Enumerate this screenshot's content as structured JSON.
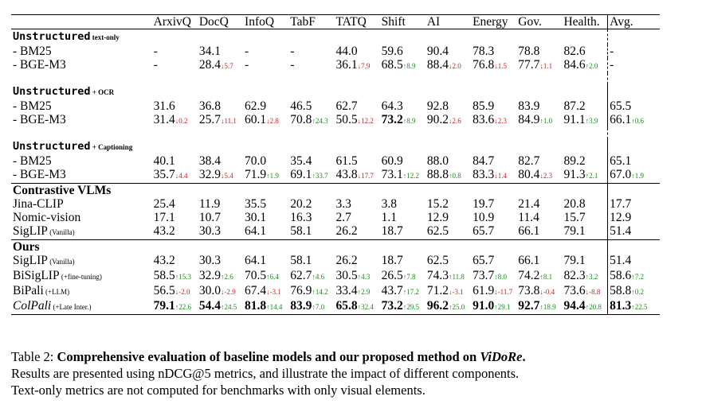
{
  "table": {
    "columns": [
      "ArxivQ",
      "DocQ",
      "InfoQ",
      "TabF",
      "TATQ",
      "Shift",
      "AI",
      "Energy",
      "Gov.",
      "Health.",
      "Avg."
    ],
    "groups": [
      {
        "title": "Unstructured",
        "subtitle": "text-only",
        "rows": [
          {
            "model": "- BM25",
            "tag": "",
            "cells": [
              {
                "v": "-"
              },
              {
                "v": "34.1"
              },
              {
                "v": "-"
              },
              {
                "v": "-"
              },
              {
                "v": "44.0"
              },
              {
                "v": "59.6"
              },
              {
                "v": "90.4"
              },
              {
                "v": "78.3"
              },
              {
                "v": "78.8"
              },
              {
                "v": "82.6"
              },
              {
                "v": "-"
              }
            ]
          },
          {
            "model": "- BGE-M3",
            "tag": "",
            "cells": [
              {
                "v": "-"
              },
              {
                "v": "28.4",
                "d": "↓5.7",
                "dir": "down"
              },
              {
                "v": "-"
              },
              {
                "v": "-"
              },
              {
                "v": "36.1",
                "d": "↓7.9",
                "dir": "down"
              },
              {
                "v": "68.5",
                "d": "↑8.9",
                "dir": "up"
              },
              {
                "v": "88.4",
                "d": "↓2.0",
                "dir": "down"
              },
              {
                "v": "76.8",
                "d": "↓1.5",
                "dir": "down"
              },
              {
                "v": "77.7",
                "d": "↓1.1",
                "dir": "down"
              },
              {
                "v": "84.6",
                "d": "↑2.0",
                "dir": "up"
              },
              {
                "v": "-"
              }
            ]
          }
        ]
      },
      {
        "title": "Unstructured",
        "subtitle": "+ OCR",
        "rows": [
          {
            "model": "- BM25",
            "tag": "",
            "cells": [
              {
                "v": "31.6"
              },
              {
                "v": "36.8"
              },
              {
                "v": "62.9"
              },
              {
                "v": "46.5"
              },
              {
                "v": "62.7"
              },
              {
                "v": "64.3"
              },
              {
                "v": "92.8"
              },
              {
                "v": "85.9"
              },
              {
                "v": "83.9"
              },
              {
                "v": "87.2"
              },
              {
                "v": "65.5"
              }
            ]
          },
          {
            "model": "- BGE-M3",
            "tag": "",
            "cells": [
              {
                "v": "31.4",
                "d": "↓0.2",
                "dir": "down"
              },
              {
                "v": "25.7",
                "d": "↓11.1",
                "dir": "down"
              },
              {
                "v": "60.1",
                "d": "↓2.8",
                "dir": "down"
              },
              {
                "v": "70.8",
                "d": "↑24.3",
                "dir": "up"
              },
              {
                "v": "50.5",
                "d": "↓12.2",
                "dir": "down"
              },
              {
                "v": "73.2",
                "d": "↑8.9",
                "dir": "up",
                "bold": true
              },
              {
                "v": "90.2",
                "d": "↓2.6",
                "dir": "down"
              },
              {
                "v": "83.6",
                "d": "↓2.3",
                "dir": "down"
              },
              {
                "v": "84.9",
                "d": "↑1.0",
                "dir": "up"
              },
              {
                "v": "91.1",
                "d": "↑3.9",
                "dir": "up"
              },
              {
                "v": "66.1",
                "d": "↑0.6",
                "dir": "up"
              }
            ]
          }
        ]
      },
      {
        "title": "Unstructured",
        "subtitle": "+ Captioning",
        "rows": [
          {
            "model": "- BM25",
            "tag": "",
            "cells": [
              {
                "v": "40.1"
              },
              {
                "v": "38.4"
              },
              {
                "v": "70.0"
              },
              {
                "v": "35.4"
              },
              {
                "v": "61.5"
              },
              {
                "v": "60.9"
              },
              {
                "v": "88.0"
              },
              {
                "v": "84.7"
              },
              {
                "v": "82.7"
              },
              {
                "v": "89.2"
              },
              {
                "v": "65.1"
              }
            ]
          },
          {
            "model": "- BGE-M3",
            "tag": "",
            "cells": [
              {
                "v": "35.7",
                "d": "↓4.4",
                "dir": "down"
              },
              {
                "v": "32.9",
                "d": "↓5.4",
                "dir": "down"
              },
              {
                "v": "71.9",
                "d": "↑1.9",
                "dir": "up"
              },
              {
                "v": "69.1",
                "d": "↑33.7",
                "dir": "up"
              },
              {
                "v": "43.8",
                "d": "↓17.7",
                "dir": "down"
              },
              {
                "v": "73.1",
                "d": "↑12.2",
                "dir": "up"
              },
              {
                "v": "88.8",
                "d": "↑0.8",
                "dir": "up"
              },
              {
                "v": "83.3",
                "d": "↓1.4",
                "dir": "down"
              },
              {
                "v": "80.4",
                "d": "↓2.3",
                "dir": "down"
              },
              {
                "v": "91.3",
                "d": "↑2.1",
                "dir": "up"
              },
              {
                "v": "67.0",
                "d": "↑1.9",
                "dir": "up"
              }
            ]
          }
        ]
      },
      {
        "title": "Contrastive VLMs",
        "subtitle": "",
        "rows": [
          {
            "model": "Jina-CLIP",
            "tag": "",
            "cells": [
              {
                "v": "25.4"
              },
              {
                "v": "11.9"
              },
              {
                "v": "35.5"
              },
              {
                "v": "20.2"
              },
              {
                "v": "3.3"
              },
              {
                "v": "3.8"
              },
              {
                "v": "15.2"
              },
              {
                "v": "19.7"
              },
              {
                "v": "21.4"
              },
              {
                "v": "20.8"
              },
              {
                "v": "17.7"
              }
            ]
          },
          {
            "model": "Nomic-vision",
            "tag": "",
            "cells": [
              {
                "v": "17.1"
              },
              {
                "v": "10.7"
              },
              {
                "v": "30.1"
              },
              {
                "v": "16.3"
              },
              {
                "v": "2.7"
              },
              {
                "v": "1.1"
              },
              {
                "v": "12.9"
              },
              {
                "v": "10.9"
              },
              {
                "v": "11.4"
              },
              {
                "v": "15.7"
              },
              {
                "v": "12.9"
              }
            ]
          },
          {
            "model": "SigLIP",
            "tag": "(Vanilla)",
            "cells": [
              {
                "v": "43.2"
              },
              {
                "v": "30.3"
              },
              {
                "v": "64.1"
              },
              {
                "v": "58.1"
              },
              {
                "v": "26.2"
              },
              {
                "v": "18.7"
              },
              {
                "v": "62.5"
              },
              {
                "v": "65.7"
              },
              {
                "v": "66.1"
              },
              {
                "v": "79.1"
              },
              {
                "v": "51.4"
              }
            ]
          }
        ]
      },
      {
        "title": "Ours",
        "subtitle": "",
        "rows": [
          {
            "model": "SigLIP",
            "tag": "(Vanilla)",
            "cells": [
              {
                "v": "43.2"
              },
              {
                "v": "30.3"
              },
              {
                "v": "64.1"
              },
              {
                "v": "58.1"
              },
              {
                "v": "26.2"
              },
              {
                "v": "18.7"
              },
              {
                "v": "62.5"
              },
              {
                "v": "65.7"
              },
              {
                "v": "66.1"
              },
              {
                "v": "79.1"
              },
              {
                "v": "51.4"
              }
            ]
          },
          {
            "model": "BiSigLIP",
            "tag": "(+fine-tuning)",
            "cells": [
              {
                "v": "58.5",
                "d": "↑15.3",
                "dir": "up"
              },
              {
                "v": "32.9",
                "d": "↑2.6",
                "dir": "up"
              },
              {
                "v": "70.5",
                "d": "↑6.4",
                "dir": "up"
              },
              {
                "v": "62.7",
                "d": "↑4.6",
                "dir": "up"
              },
              {
                "v": "30.5",
                "d": "↑4.3",
                "dir": "up"
              },
              {
                "v": "26.5",
                "d": "↑7.8",
                "dir": "up"
              },
              {
                "v": "74.3",
                "d": "↑11.8",
                "dir": "up"
              },
              {
                "v": "73.7",
                "d": "↑8.0",
                "dir": "up"
              },
              {
                "v": "74.2",
                "d": "↑8.1",
                "dir": "up"
              },
              {
                "v": "82.3",
                "d": "↑3.2",
                "dir": "up"
              },
              {
                "v": "58.6",
                "d": "↑7.2",
                "dir": "up"
              }
            ]
          },
          {
            "model": "BiPali",
            "tag": "(+LLM)",
            "cells": [
              {
                "v": "56.5",
                "d": "↓-2.0",
                "dir": "down"
              },
              {
                "v": "30.0",
                "d": "↓-2.9",
                "dir": "down"
              },
              {
                "v": "67.4",
                "d": "↓-3.1",
                "dir": "down"
              },
              {
                "v": "76.9",
                "d": "↑14.2",
                "dir": "up"
              },
              {
                "v": "33.4",
                "d": "↑2.9",
                "dir": "up"
              },
              {
                "v": "43.7",
                "d": "↑17.2",
                "dir": "up"
              },
              {
                "v": "71.2",
                "d": "↓-3.1",
                "dir": "down"
              },
              {
                "v": "61.9",
                "d": "↓-11.7",
                "dir": "down"
              },
              {
                "v": "73.8",
                "d": "↓-0.4",
                "dir": "down"
              },
              {
                "v": "73.6",
                "d": "↓-8.8",
                "dir": "down"
              },
              {
                "v": "58.8",
                "d": "↑0.2",
                "dir": "up"
              }
            ]
          },
          {
            "model": "ColPali",
            "tag": "(+Late Inter.)",
            "italic": true,
            "cells": [
              {
                "v": "79.1",
                "d": "↑22.6",
                "dir": "up",
                "bold": true
              },
              {
                "v": "54.4",
                "d": "↑24.5",
                "dir": "up",
                "bold": true
              },
              {
                "v": "81.8",
                "d": "↑14.4",
                "dir": "up",
                "bold": true
              },
              {
                "v": "83.9",
                "d": "↑7.0",
                "dir": "up",
                "bold": true
              },
              {
                "v": "65.8",
                "d": "↑32.4",
                "dir": "up",
                "bold": true
              },
              {
                "v": "73.2",
                "d": "↑29.5",
                "dir": "up",
                "bold": true
              },
              {
                "v": "96.2",
                "d": "↑25.0",
                "dir": "up",
                "bold": true
              },
              {
                "v": "91.0",
                "d": "↑29.1",
                "dir": "up",
                "bold": true
              },
              {
                "v": "92.7",
                "d": "↑18.9",
                "dir": "up",
                "bold": true
              },
              {
                "v": "94.4",
                "d": "↑20.8",
                "dir": "up",
                "bold": true
              },
              {
                "v": "81.3",
                "d": "↑22.5",
                "dir": "up",
                "bold": true
              }
            ]
          }
        ]
      }
    ]
  },
  "caption": {
    "label": "Table 2:",
    "bold_text": "Comprehensive evaluation of baseline models and our proposed method on",
    "bold_italic": "ViDoRe",
    "bold_end": ".",
    "line2": "Results are presented using nDCG@5 metrics, and illustrate the impact of different components.",
    "line3": "Text-only metrics are not computed for benchmarks with only visual elements."
  },
  "colors": {
    "up": "#1a8a1a",
    "down": "#c82020"
  }
}
